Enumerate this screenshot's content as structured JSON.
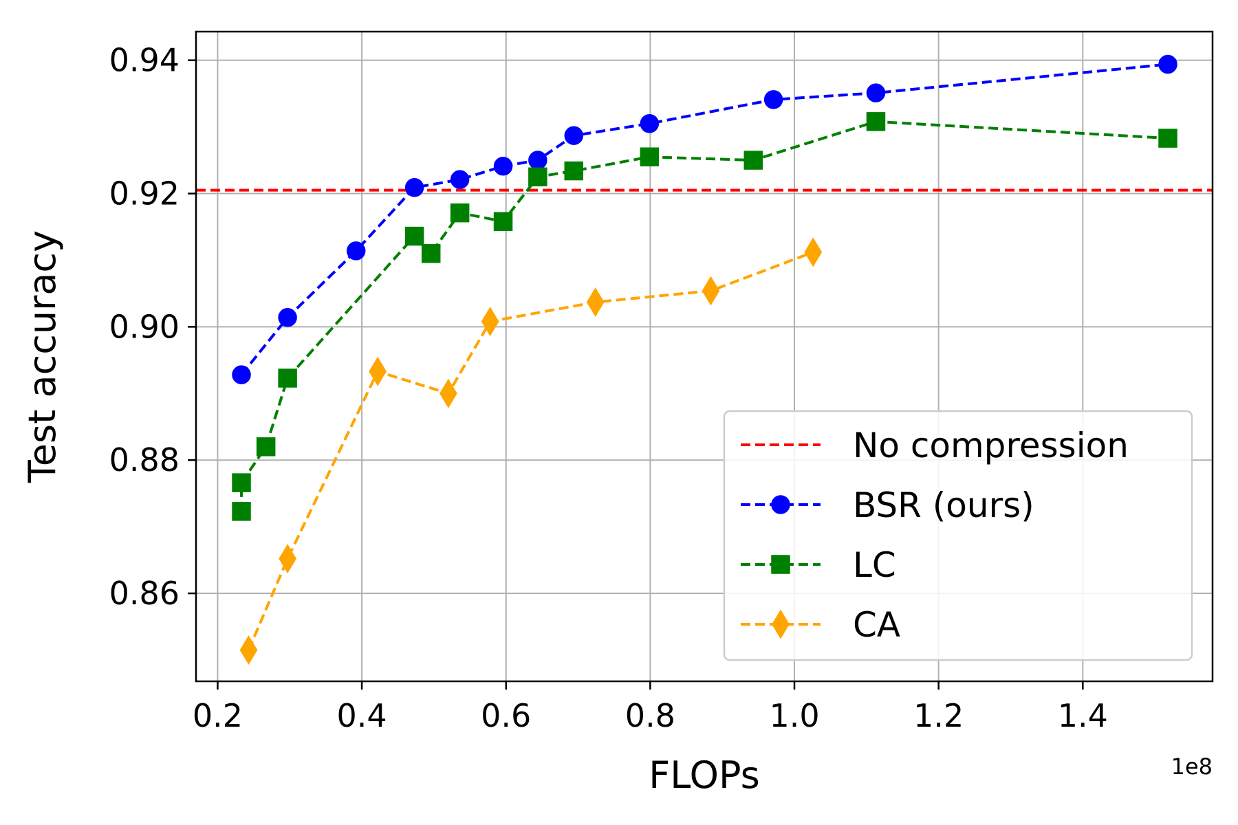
{
  "chart_data": {
    "type": "line",
    "title": "",
    "xlabel": "FLOPs",
    "ylabel": "Test accuracy",
    "x_offset_label": "1e8",
    "xlim": [
      0.17,
      1.58
    ],
    "ylim": [
      0.8468,
      0.9443
    ],
    "grid": true,
    "legend_position": "lower-right",
    "x_ticks": [
      0.2,
      0.4,
      0.6,
      0.8,
      1.0,
      1.2,
      1.4
    ],
    "x_tick_labels": [
      "0.2",
      "0.4",
      "0.6",
      "0.8",
      "1.0",
      "1.2",
      "1.4"
    ],
    "y_ticks": [
      0.86,
      0.88,
      0.9,
      0.92,
      0.94
    ],
    "y_tick_labels": [
      "0.86",
      "0.88",
      "0.90",
      "0.92",
      "0.94"
    ],
    "baseline": {
      "name": "No compression",
      "y": 0.9205,
      "color": "#ff0000"
    },
    "series": [
      {
        "name": "BSR (ours)",
        "color": "#0000ff",
        "marker": "circle",
        "x": [
          0.233,
          0.297,
          0.392,
          0.473,
          0.536,
          0.596,
          0.644,
          0.694,
          0.799,
          0.971,
          1.113,
          1.518
        ],
        "y": [
          0.8928,
          0.9014,
          0.9114,
          0.9209,
          0.9221,
          0.9241,
          0.925,
          0.9287,
          0.9305,
          0.9341,
          0.9351,
          0.9394
        ]
      },
      {
        "name": "LC",
        "color": "#008000",
        "marker": "square",
        "x": [
          0.233,
          0.233,
          0.267,
          0.297,
          0.473,
          0.496,
          0.536,
          0.596,
          0.644,
          0.694,
          0.799,
          0.943,
          1.113,
          1.518
        ],
        "y": [
          0.8723,
          0.8766,
          0.882,
          0.8923,
          0.9136,
          0.911,
          0.9171,
          0.9158,
          0.9225,
          0.9234,
          0.9255,
          0.925,
          0.9308,
          0.9283
        ]
      },
      {
        "name": "CA",
        "color": "#ffa500",
        "marker": "diamond",
        "x": [
          0.243,
          0.297,
          0.422,
          0.52,
          0.578,
          0.724,
          0.884,
          1.026
        ],
        "y": [
          0.8515,
          0.8652,
          0.8933,
          0.89,
          0.9008,
          0.9037,
          0.9054,
          0.9112
        ]
      }
    ]
  }
}
